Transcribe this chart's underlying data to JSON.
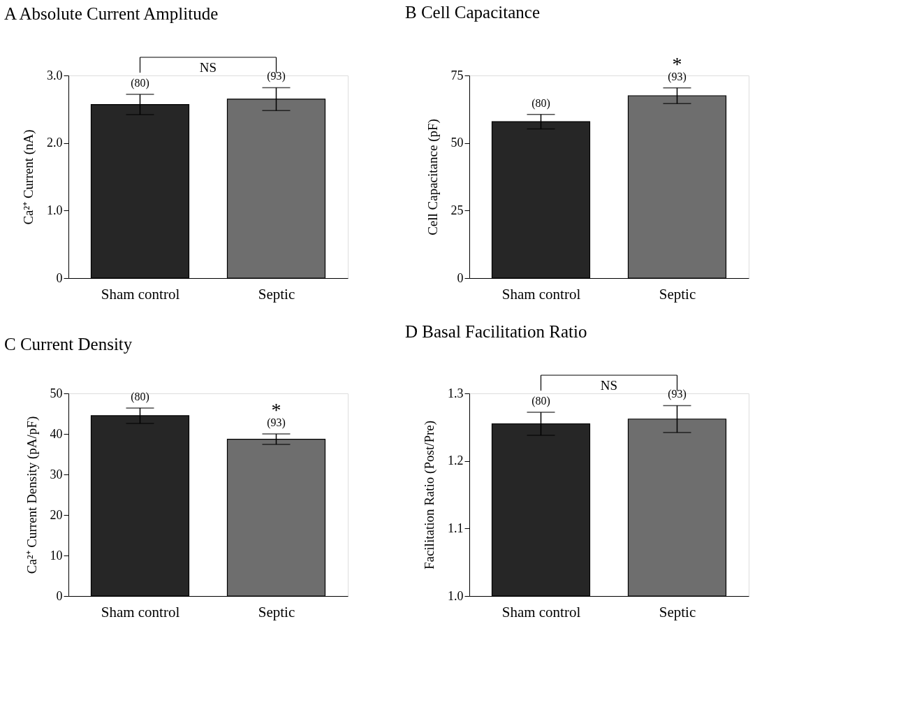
{
  "chart_data": [
    {
      "type": "bar",
      "title": "A Absolute Current Amplitude",
      "ylabel": "Ca²⁺ Current  (nA)",
      "categories": [
        "Sham control",
        "Septic"
      ],
      "values": [
        2.57,
        2.65
      ],
      "colors": [
        "#262626",
        "#6e6e6e"
      ],
      "errors": [
        0.15,
        0.17
      ],
      "ylim": [
        0,
        3.0
      ],
      "yticks": [
        0,
        {
          "value": 1,
          "label": "1.0"
        },
        {
          "value": 2,
          "label": "2.0"
        },
        {
          "value": 3,
          "label": "3.0"
        }
      ],
      "grid": false,
      "annotations": [
        "NS",
        {
          "text": "(80)",
          "x": "Sham control",
          "y": 2.72
        },
        {
          "text": "(93)",
          "x": "Septic",
          "y": 2.82
        }
      ]
    },
    {
      "type": "bar",
      "title": "B Cell Capacitance",
      "ylabel": "Cell Capacitance (pF)",
      "categories": [
        "Sham control",
        "Septic"
      ],
      "values": [
        57.9,
        67.5
      ],
      "colors": [
        "#262626",
        "#6e6e6e"
      ],
      "errors": [
        2.7,
        2.9
      ],
      "ylim": [
        0,
        75
      ],
      "yticks": [
        0,
        25,
        50,
        75
      ],
      "grid": false,
      "annotations": [
        {
          "text": "(80)",
          "x": "Sham control",
          "y": 60.6
        },
        {
          "text": "(93)",
          "x": "Septic",
          "y": 70.4
        },
        {
          "text": "*",
          "x": "Septic",
          "y": 70.4
        }
      ]
    },
    {
      "type": "bar",
      "title": "C Current Density",
      "ylabel": "Ca²⁺ Current Density (pA/pF)",
      "categories": [
        "Sham control",
        "Septic"
      ],
      "values": [
        44.5,
        38.7
      ],
      "colors": [
        "#262626",
        "#6e6e6e"
      ],
      "errors": [
        1.9,
        1.3
      ],
      "ylim": [
        0,
        50
      ],
      "yticks": [
        0,
        10,
        20,
        30,
        40,
        50
      ],
      "grid": false,
      "annotations": [
        {
          "text": "(80)",
          "x": "Sham control",
          "y": 46.4
        },
        {
          "text": "(93)",
          "x": "Septic",
          "y": 40.0
        },
        {
          "text": "*",
          "x": "Septic",
          "y": 40.0
        }
      ]
    },
    {
      "type": "bar",
      "title": "D Basal Facilitation Ratio",
      "ylabel": "Facilitation Ratio (Post/Pre)",
      "categories": [
        "Sham control",
        "Septic"
      ],
      "values": [
        1.255,
        1.262
      ],
      "colors": [
        "#262626",
        "#6e6e6e"
      ],
      "errors": [
        0.017,
        0.02
      ],
      "ylim": [
        1.0,
        1.3
      ],
      "yticks": [
        {
          "value": 1.0,
          "label": "1.0"
        },
        1.1,
        1.2,
        1.3
      ],
      "grid": false,
      "annotations": [
        "NS",
        {
          "text": "(80)",
          "x": "Sham control",
          "y": 1.272
        },
        {
          "text": "(93)",
          "x": "Septic",
          "y": 1.282
        }
      ]
    }
  ]
}
